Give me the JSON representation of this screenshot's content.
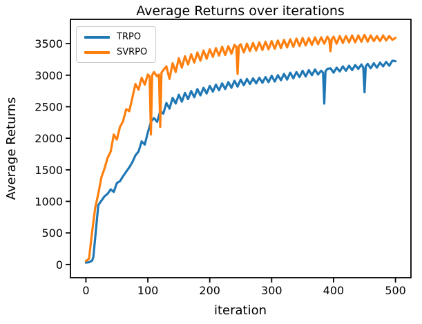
{
  "chart_data": {
    "type": "line",
    "title": "Average Returns  over iterations",
    "xlabel": "iteration",
    "ylabel": "Average Returns",
    "xlim": [
      -25,
      525
    ],
    "ylim": [
      -210,
      3885
    ],
    "xticks": [
      0,
      100,
      200,
      300,
      400,
      500
    ],
    "yticks": [
      0,
      500,
      1000,
      1500,
      2000,
      2500,
      3000,
      3500
    ],
    "grid": false,
    "legend": {
      "position": "upper left",
      "entries": [
        "TRPO",
        "SVRPO"
      ]
    },
    "series": [
      {
        "name": "TRPO",
        "color": "#1f77b4",
        "points": [
          [
            0,
            30
          ],
          [
            5,
            35
          ],
          [
            10,
            60
          ],
          [
            12,
            120
          ],
          [
            15,
            430
          ],
          [
            20,
            940
          ],
          [
            25,
            1010
          ],
          [
            30,
            1080
          ],
          [
            35,
            1120
          ],
          [
            40,
            1190
          ],
          [
            45,
            1150
          ],
          [
            50,
            1290
          ],
          [
            55,
            1320
          ],
          [
            60,
            1400
          ],
          [
            65,
            1470
          ],
          [
            70,
            1540
          ],
          [
            75,
            1620
          ],
          [
            80,
            1730
          ],
          [
            85,
            1790
          ],
          [
            90,
            1950
          ],
          [
            95,
            1900
          ],
          [
            100,
            2090
          ],
          [
            105,
            2260
          ],
          [
            110,
            2320
          ],
          [
            115,
            2260
          ],
          [
            120,
            2430
          ],
          [
            125,
            2390
          ],
          [
            130,
            2560
          ],
          [
            135,
            2470
          ],
          [
            140,
            2640
          ],
          [
            145,
            2550
          ],
          [
            150,
            2690
          ],
          [
            155,
            2580
          ],
          [
            160,
            2720
          ],
          [
            165,
            2620
          ],
          [
            170,
            2750
          ],
          [
            175,
            2650
          ],
          [
            180,
            2780
          ],
          [
            185,
            2680
          ],
          [
            190,
            2800
          ],
          [
            195,
            2710
          ],
          [
            200,
            2830
          ],
          [
            205,
            2740
          ],
          [
            210,
            2850
          ],
          [
            215,
            2760
          ],
          [
            220,
            2870
          ],
          [
            225,
            2780
          ],
          [
            230,
            2890
          ],
          [
            235,
            2800
          ],
          [
            240,
            2910
          ],
          [
            245,
            2820
          ],
          [
            250,
            2930
          ],
          [
            255,
            2840
          ],
          [
            260,
            2940
          ],
          [
            265,
            2860
          ],
          [
            270,
            2950
          ],
          [
            275,
            2870
          ],
          [
            280,
            2960
          ],
          [
            285,
            2880
          ],
          [
            290,
            2970
          ],
          [
            295,
            2890
          ],
          [
            300,
            2990
          ],
          [
            305,
            2900
          ],
          [
            310,
            3000
          ],
          [
            315,
            2920
          ],
          [
            320,
            3020
          ],
          [
            325,
            2930
          ],
          [
            330,
            3040
          ],
          [
            335,
            2950
          ],
          [
            340,
            3050
          ],
          [
            345,
            2970
          ],
          [
            350,
            3070
          ],
          [
            355,
            2980
          ],
          [
            360,
            3080
          ],
          [
            365,
            3000
          ],
          [
            370,
            3090
          ],
          [
            375,
            3010
          ],
          [
            380,
            3070
          ],
          [
            383,
            3040
          ],
          [
            385,
            2550
          ],
          [
            387,
            3060
          ],
          [
            390,
            3100
          ],
          [
            395,
            3110
          ],
          [
            400,
            3040
          ],
          [
            405,
            3120
          ],
          [
            410,
            3060
          ],
          [
            415,
            3140
          ],
          [
            420,
            3070
          ],
          [
            425,
            3150
          ],
          [
            430,
            3080
          ],
          [
            435,
            3160
          ],
          [
            440,
            3100
          ],
          [
            445,
            3170
          ],
          [
            448,
            3120
          ],
          [
            450,
            2730
          ],
          [
            452,
            3140
          ],
          [
            455,
            3180
          ],
          [
            460,
            3110
          ],
          [
            465,
            3190
          ],
          [
            470,
            3120
          ],
          [
            475,
            3200
          ],
          [
            480,
            3140
          ],
          [
            485,
            3210
          ],
          [
            490,
            3150
          ],
          [
            495,
            3230
          ],
          [
            500,
            3220
          ]
        ]
      },
      {
        "name": "SVRPO",
        "color": "#ff7f0e",
        "points": [
          [
            0,
            55
          ],
          [
            5,
            90
          ],
          [
            8,
            350
          ],
          [
            10,
            520
          ],
          [
            15,
            900
          ],
          [
            20,
            1120
          ],
          [
            25,
            1380
          ],
          [
            30,
            1520
          ],
          [
            35,
            1690
          ],
          [
            40,
            1790
          ],
          [
            45,
            2060
          ],
          [
            50,
            1980
          ],
          [
            55,
            2180
          ],
          [
            60,
            2270
          ],
          [
            65,
            2460
          ],
          [
            70,
            2430
          ],
          [
            75,
            2640
          ],
          [
            80,
            2860
          ],
          [
            85,
            2770
          ],
          [
            90,
            2960
          ],
          [
            95,
            2850
          ],
          [
            100,
            3010
          ],
          [
            103,
            2980
          ],
          [
            105,
            2060
          ],
          [
            107,
            3000
          ],
          [
            110,
            3050
          ],
          [
            115,
            2980
          ],
          [
            118,
            3010
          ],
          [
            120,
            2180
          ],
          [
            122,
            3040
          ],
          [
            125,
            3080
          ],
          [
            130,
            3140
          ],
          [
            135,
            2940
          ],
          [
            140,
            3190
          ],
          [
            145,
            3050
          ],
          [
            150,
            3270
          ],
          [
            155,
            3120
          ],
          [
            160,
            3300
          ],
          [
            165,
            3170
          ],
          [
            170,
            3330
          ],
          [
            175,
            3200
          ],
          [
            180,
            3360
          ],
          [
            185,
            3230
          ],
          [
            190,
            3390
          ],
          [
            195,
            3260
          ],
          [
            200,
            3410
          ],
          [
            205,
            3290
          ],
          [
            210,
            3430
          ],
          [
            215,
            3310
          ],
          [
            220,
            3450
          ],
          [
            225,
            3320
          ],
          [
            230,
            3460
          ],
          [
            235,
            3340
          ],
          [
            240,
            3480
          ],
          [
            243,
            3450
          ],
          [
            245,
            3020
          ],
          [
            247,
            3460
          ],
          [
            250,
            3490
          ],
          [
            255,
            3360
          ],
          [
            260,
            3500
          ],
          [
            265,
            3380
          ],
          [
            270,
            3510
          ],
          [
            275,
            3390
          ],
          [
            280,
            3520
          ],
          [
            285,
            3400
          ],
          [
            290,
            3530
          ],
          [
            295,
            3410
          ],
          [
            300,
            3540
          ],
          [
            305,
            3420
          ],
          [
            310,
            3550
          ],
          [
            315,
            3430
          ],
          [
            320,
            3560
          ],
          [
            325,
            3440
          ],
          [
            330,
            3570
          ],
          [
            335,
            3450
          ],
          [
            340,
            3580
          ],
          [
            345,
            3460
          ],
          [
            350,
            3590
          ],
          [
            355,
            3470
          ],
          [
            360,
            3590
          ],
          [
            365,
            3480
          ],
          [
            370,
            3600
          ],
          [
            375,
            3490
          ],
          [
            380,
            3600
          ],
          [
            385,
            3500
          ],
          [
            390,
            3610
          ],
          [
            393,
            3560
          ],
          [
            395,
            3380
          ],
          [
            397,
            3570
          ],
          [
            400,
            3610
          ],
          [
            405,
            3500
          ],
          [
            410,
            3620
          ],
          [
            415,
            3510
          ],
          [
            420,
            3620
          ],
          [
            425,
            3520
          ],
          [
            430,
            3630
          ],
          [
            435,
            3520
          ],
          [
            440,
            3630
          ],
          [
            445,
            3530
          ],
          [
            450,
            3640
          ],
          [
            455,
            3530
          ],
          [
            460,
            3630
          ],
          [
            465,
            3540
          ],
          [
            470,
            3620
          ],
          [
            475,
            3540
          ],
          [
            480,
            3630
          ],
          [
            485,
            3550
          ],
          [
            490,
            3620
          ],
          [
            495,
            3560
          ],
          [
            500,
            3590
          ]
        ]
      }
    ]
  }
}
